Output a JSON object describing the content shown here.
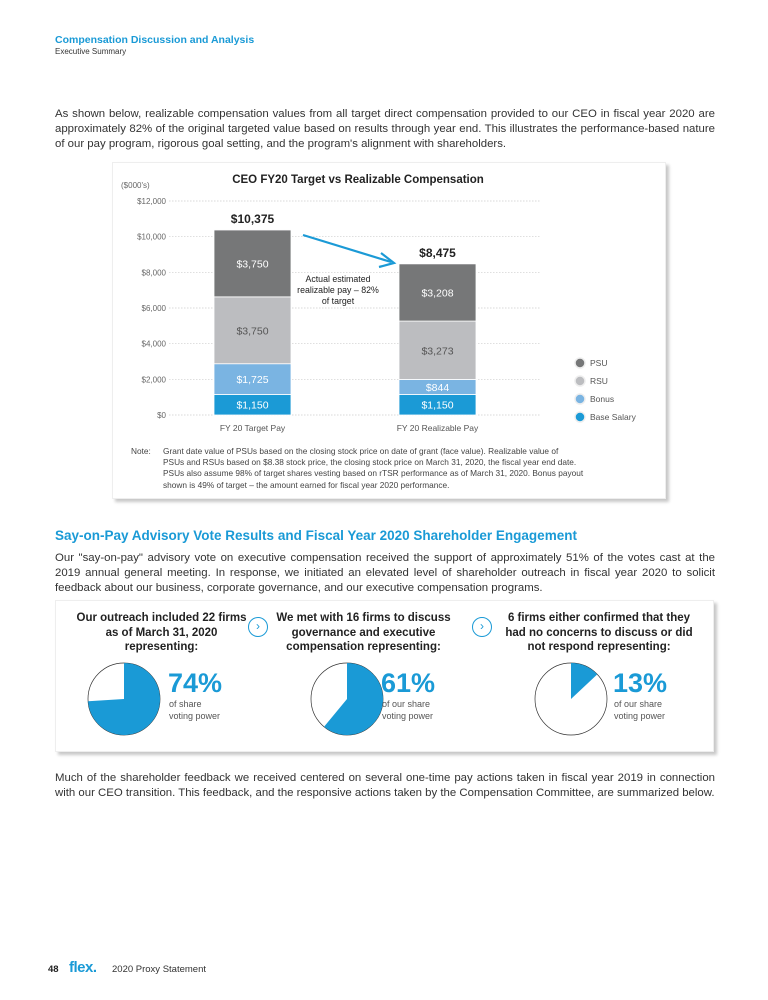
{
  "header": {
    "section": "Compensation Discussion and Analysis",
    "subsection": "Executive Summary"
  },
  "intro": "As shown below, realizable compensation values from all target direct compensation provided to our CEO in fiscal year 2020 are approximately 82% of the original targeted value based on results through year end. This illustrates the performance-based nature of our pay program, rigorous goal setting, and the program's alignment with shareholders.",
  "chart_data": {
    "type": "bar",
    "stacked": true,
    "title": "CEO FY20 Target vs Realizable Compensation",
    "ylabel": "($000's)",
    "ylim": [
      0,
      12000
    ],
    "yticks": [
      "$0",
      "$2,000",
      "$4,000",
      "$6,000",
      "$8,000",
      "$10,000",
      "$12,000"
    ],
    "categories": [
      "FY 20 Target Pay",
      "FY 20 Realizable Pay"
    ],
    "totals": [
      "$10,375",
      "$8,475"
    ],
    "series": [
      {
        "name": "Base Salary",
        "color": "#1b9ad6",
        "values": [
          1150,
          1150
        ],
        "labels": [
          "$1,150",
          "$1,150"
        ],
        "label_color": "#ffffff"
      },
      {
        "name": "Bonus",
        "color": "#7ab4e2",
        "values": [
          1725,
          844
        ],
        "labels": [
          "$1,725",
          "$844"
        ],
        "label_color": "#ffffff"
      },
      {
        "name": "RSU",
        "color": "#bcbdc0",
        "values": [
          3750,
          3273
        ],
        "labels": [
          "$3,750",
          "$3,273"
        ],
        "label_color": "#555555"
      },
      {
        "name": "PSU",
        "color": "#767778",
        "values": [
          3750,
          3208
        ],
        "labels": [
          "$3,750",
          "$3,208"
        ],
        "label_color": "#ffffff"
      }
    ],
    "annotation": [
      "Actual estimated",
      "realizable pay – 82%",
      "of target"
    ],
    "legend_position": "bottom-right"
  },
  "chart_note": {
    "label": "Note:",
    "lines": [
      "Grant date value of PSUs based on the closing stock price on date of grant (face value). Realizable value of",
      "PSUs and RSUs based on $8.38 stock price, the closing stock price on March 31, 2020, the fiscal year end date.",
      "PSUs also assume 98% of target shares vesting based on rTSR performance as of March 31, 2020. Bonus payout",
      "shown is 49% of target – the amount earned for fiscal year 2020 performance."
    ]
  },
  "say_on_pay": {
    "title": "Say-on-Pay Advisory Vote Results and Fiscal Year 2020 Shareholder Engagement",
    "body": "Our \"say-on-pay\" advisory vote on executive compensation received the support of approximately 51% of the votes cast at the 2019 annual general meeting. In response, we initiated an elevated level of shareholder outreach in fiscal year 2020 to solicit feedback about our business, corporate governance, and our executive compensation programs.",
    "columns": [
      {
        "heading": "Our outreach included 22 firms as of March 31, 2020 representing:",
        "percent": "74%",
        "value": 74,
        "sub": [
          "of share",
          "voting power"
        ]
      },
      {
        "heading": "We met with 16 firms to discuss governance and executive compensation representing:",
        "percent": "61%",
        "value": 61,
        "sub": [
          "of our share",
          "voting power"
        ]
      },
      {
        "heading": "6 firms either confirmed that they had no concerns to discuss or did not respond representing:",
        "percent": "13%",
        "value": 13,
        "sub": [
          "of our share",
          "voting power"
        ]
      }
    ],
    "accent": "#1a9ad6"
  },
  "closing": "Much of the shareholder feedback we received centered on several one-time pay actions taken in fiscal year 2019 in connection with our CEO transition. This feedback, and the responsive actions taken by the Compensation Committee, are summarized below.",
  "footer": {
    "page": "48",
    "logo": "flex.",
    "doc": "2020 Proxy Statement"
  }
}
